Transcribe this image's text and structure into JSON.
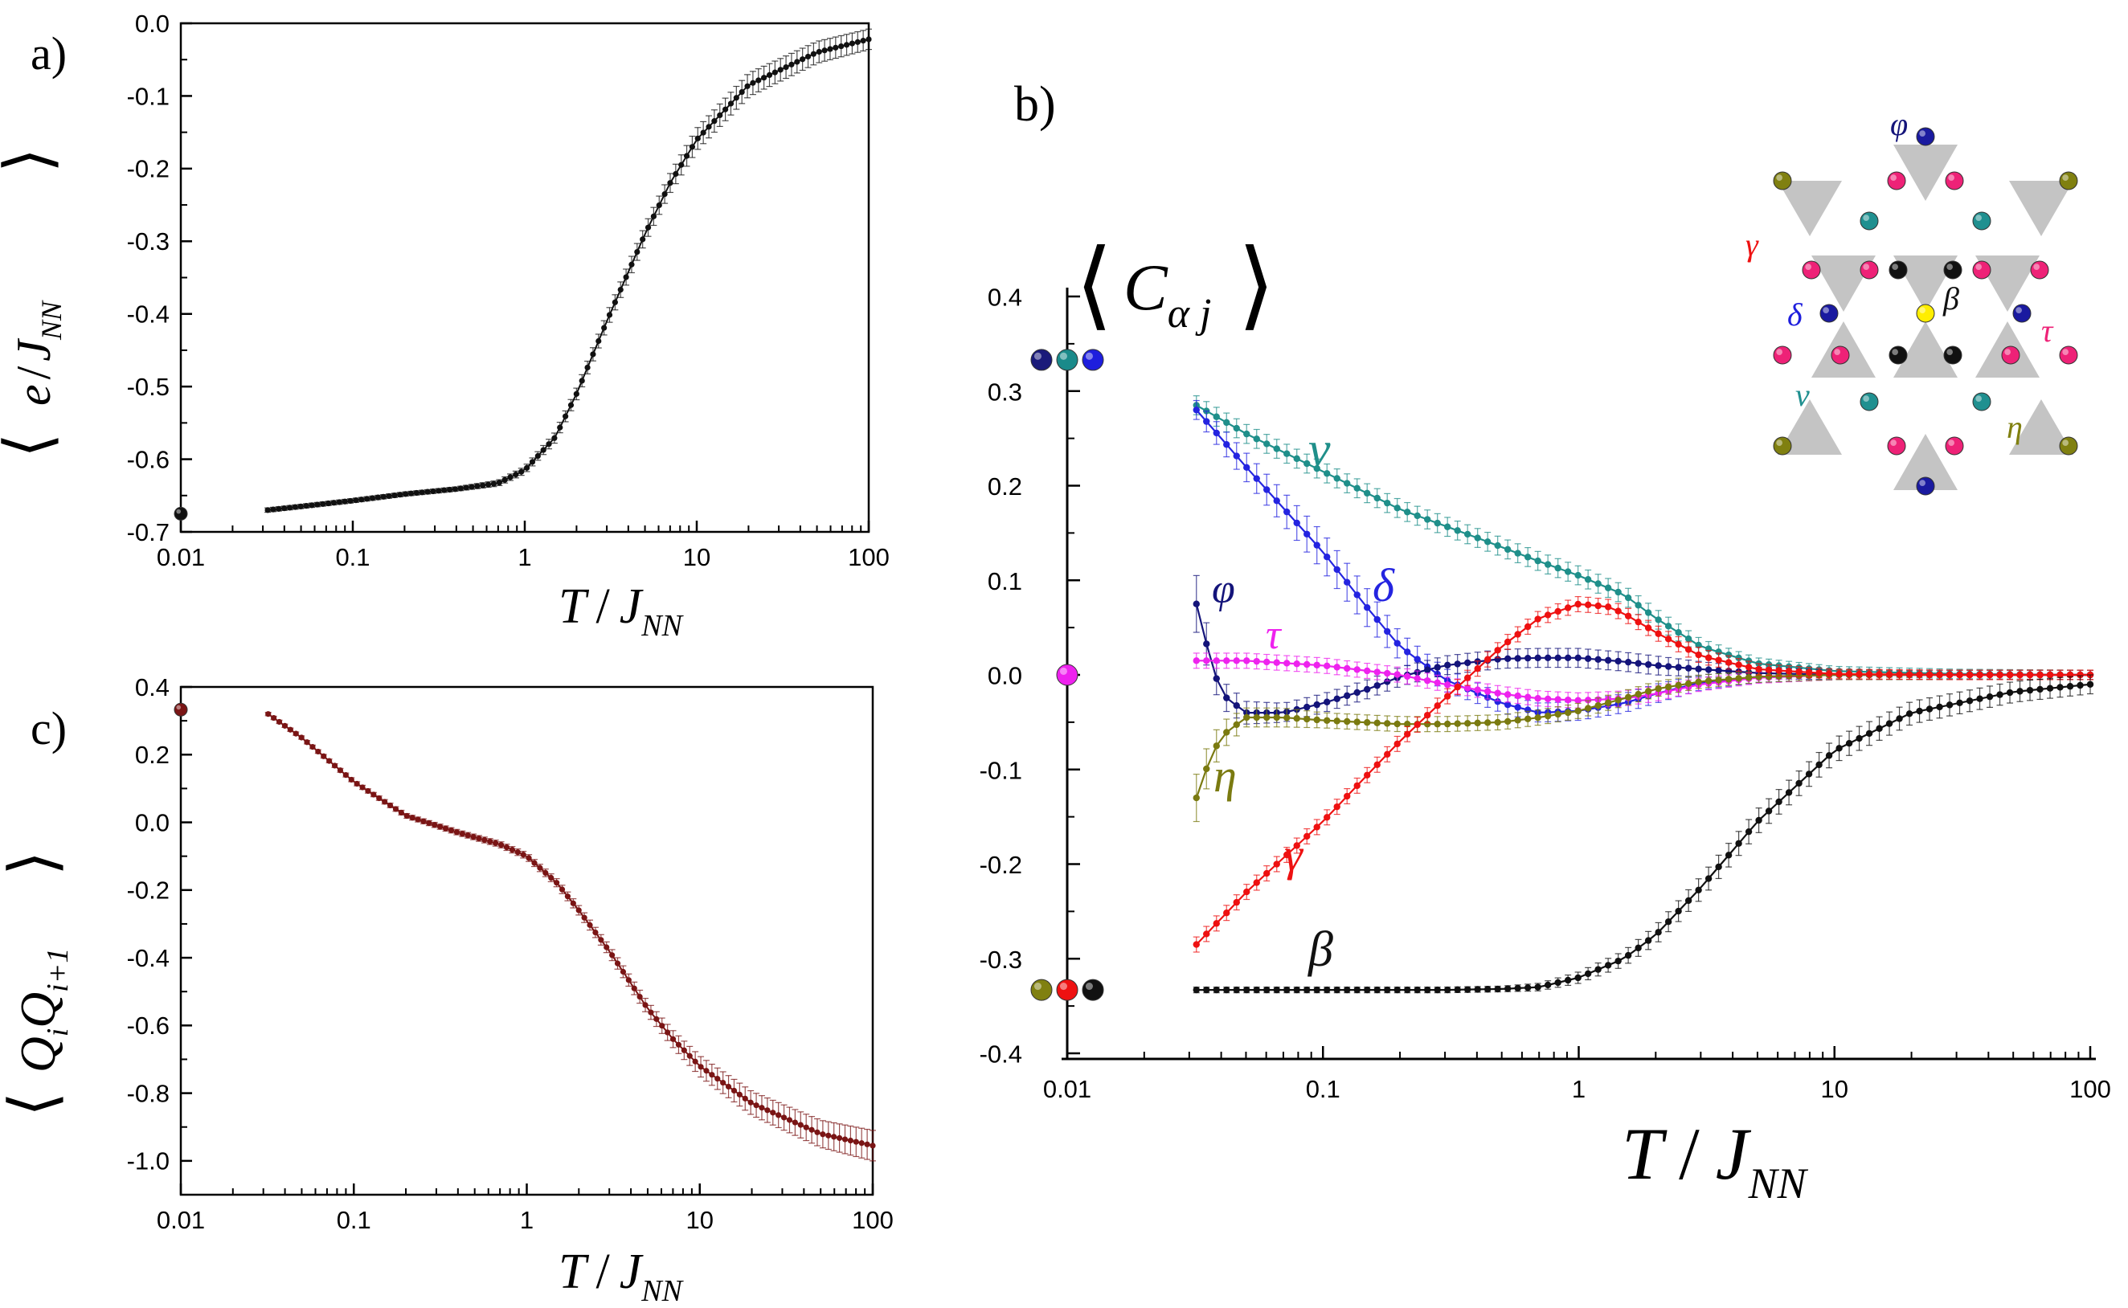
{
  "chart_data": [
    {
      "panel_label": "a)",
      "type": "scatter",
      "x_scale": "log",
      "xlim": [
        0.01,
        100
      ],
      "ylim": [
        -0.7,
        0.0
      ],
      "xlabel_T": "T",
      "xlabel_sep": "/",
      "xlabel_J": "J",
      "xlabel_sub": "NN",
      "ylabel_e": "e",
      "ylabel_sep": "/",
      "ylabel_J": "J",
      "ylabel_sub": "NN",
      "xtick_labels": [
        "0.01",
        "0.1",
        "1",
        "10",
        "100"
      ],
      "ytick_labels": [
        "0.0",
        "-0.1",
        "-0.2",
        "-0.3",
        "-0.4",
        "-0.5",
        "-0.6",
        "-0.7"
      ],
      "ground_state": {
        "x": 0.01,
        "y": -0.675,
        "color": "#111111"
      },
      "series": [
        {
          "name": "e",
          "color": "#111111",
          "x": [
            0.032,
            0.05,
            0.1,
            0.2,
            0.4,
            0.7,
            1.0,
            1.5,
            2.0,
            3.0,
            5.0,
            7.0,
            10,
            20,
            50,
            100
          ],
          "y": [
            -0.67,
            -0.665,
            -0.657,
            -0.648,
            -0.641,
            -0.633,
            -0.615,
            -0.57,
            -0.51,
            -0.41,
            -0.29,
            -0.22,
            -0.16,
            -0.085,
            -0.04,
            -0.022
          ],
          "err": [
            0.003,
            0.003,
            0.003,
            0.003,
            0.003,
            0.004,
            0.005,
            0.007,
            0.008,
            0.01,
            0.012,
            0.013,
            0.015,
            0.016,
            0.015,
            0.014
          ]
        }
      ]
    },
    {
      "panel_label": "b)",
      "type": "scatter",
      "x_scale": "log",
      "xlim": [
        0.01,
        100
      ],
      "ylim": [
        -0.4,
        0.4
      ],
      "xlabel_T": "T",
      "xlabel_sep": "/",
      "xlabel_J": "J",
      "xlabel_sub": "NN",
      "ylabel_C": "C",
      "ylabel_sub": "α j",
      "xtick_labels": [
        "0.01",
        "0.1",
        "1",
        "10",
        "100"
      ],
      "ytick_labels": [
        "0.4",
        "0.3",
        "0.2",
        "0.1",
        "0.0",
        "-0.1",
        "-0.2",
        "-0.3",
        "-0.4"
      ],
      "ground_states": [
        {
          "y": 0.333,
          "colors": [
            "#1a1a7a",
            "#1a8a8a",
            "#1e1edd"
          ]
        },
        {
          "y": 0.0,
          "colors": [
            "#ee22ee"
          ]
        },
        {
          "y": -0.333,
          "colors": [
            "#808010",
            "#ee1111",
            "#111111"
          ]
        }
      ],
      "series": [
        {
          "name": "ν",
          "color": "#1f8f8a",
          "x": [
            0.032,
            0.05,
            0.1,
            0.2,
            0.4,
            0.7,
            1.0,
            1.5,
            2.0,
            3.0,
            5.0,
            10,
            30,
            100
          ],
          "y": [
            0.285,
            0.255,
            0.215,
            0.175,
            0.145,
            0.12,
            0.105,
            0.085,
            0.06,
            0.03,
            0.012,
            0.004,
            0.001,
            0.0
          ],
          "err": [
            0.01,
            0.01,
            0.01,
            0.01,
            0.01,
            0.01,
            0.01,
            0.01,
            0.01,
            0.008,
            0.006,
            0.005,
            0.005,
            0.005
          ]
        },
        {
          "name": "δ",
          "color": "#2424e0",
          "x": [
            0.032,
            0.05,
            0.1,
            0.15,
            0.2,
            0.3,
            0.5,
            0.7,
            1.0,
            1.5,
            2.0,
            3.0,
            5.0,
            10,
            30,
            100
          ],
          "y": [
            0.28,
            0.22,
            0.13,
            0.07,
            0.03,
            -0.005,
            -0.03,
            -0.04,
            -0.038,
            -0.03,
            -0.02,
            -0.008,
            -0.002,
            0.0,
            0.0,
            0.0
          ],
          "err": [
            0.01,
            0.015,
            0.02,
            0.02,
            0.015,
            0.012,
            0.01,
            0.01,
            0.01,
            0.01,
            0.01,
            0.008,
            0.006,
            0.005,
            0.005,
            0.005
          ]
        },
        {
          "name": "φ",
          "color": "#14147a",
          "x": [
            0.032,
            0.036,
            0.04,
            0.05,
            0.07,
            0.1,
            0.15,
            0.2,
            0.3,
            0.5,
            0.7,
            1.0,
            1.5,
            2.0,
            3.0,
            5.0,
            10,
            30,
            100
          ],
          "y": [
            0.075,
            0.02,
            -0.02,
            -0.04,
            -0.04,
            -0.03,
            -0.015,
            -0.002,
            0.01,
            0.017,
            0.018,
            0.018,
            0.014,
            0.01,
            0.006,
            0.002,
            0.0,
            0.0,
            0.0
          ],
          "err": [
            0.03,
            0.02,
            0.015,
            0.012,
            0.01,
            0.01,
            0.01,
            0.01,
            0.01,
            0.01,
            0.01,
            0.01,
            0.01,
            0.01,
            0.008,
            0.006,
            0.005,
            0.005,
            0.005
          ]
        },
        {
          "name": "τ",
          "color": "#ee22ee",
          "x": [
            0.032,
            0.05,
            0.1,
            0.2,
            0.3,
            0.5,
            0.7,
            1.0,
            1.5,
            2.0,
            3.0,
            5.0,
            10,
            30,
            100
          ],
          "y": [
            0.015,
            0.015,
            0.01,
            0.0,
            -0.01,
            -0.02,
            -0.025,
            -0.027,
            -0.025,
            -0.02,
            -0.01,
            -0.003,
            0.0,
            0.0,
            0.0
          ],
          "err": [
            0.008,
            0.008,
            0.008,
            0.008,
            0.008,
            0.008,
            0.008,
            0.008,
            0.008,
            0.008,
            0.007,
            0.006,
            0.005,
            0.005,
            0.005
          ]
        },
        {
          "name": "η",
          "color": "#7a7a10",
          "x": [
            0.032,
            0.036,
            0.04,
            0.05,
            0.07,
            0.1,
            0.2,
            0.3,
            0.5,
            0.7,
            1.0,
            1.5,
            2.0,
            3.0,
            5.0,
            10,
            30,
            100
          ],
          "y": [
            -0.13,
            -0.09,
            -0.065,
            -0.045,
            -0.045,
            -0.048,
            -0.052,
            -0.052,
            -0.05,
            -0.045,
            -0.038,
            -0.025,
            -0.015,
            -0.007,
            -0.002,
            0.0,
            0.0,
            0.0
          ],
          "err": [
            0.025,
            0.02,
            0.015,
            0.01,
            0.01,
            0.008,
            0.008,
            0.008,
            0.008,
            0.008,
            0.008,
            0.008,
            0.008,
            0.007,
            0.006,
            0.005,
            0.005,
            0.005
          ]
        },
        {
          "name": "γ",
          "color": "#ee1111",
          "x": [
            0.032,
            0.05,
            0.1,
            0.15,
            0.2,
            0.3,
            0.5,
            0.7,
            1.0,
            1.3,
            1.5,
            2.0,
            3.0,
            5.0,
            10,
            30,
            100
          ],
          "y": [
            -0.285,
            -0.23,
            -0.155,
            -0.105,
            -0.07,
            -0.025,
            0.03,
            0.06,
            0.075,
            0.072,
            0.065,
            0.045,
            0.02,
            0.006,
            0.001,
            0.0,
            0.0
          ],
          "err": [
            0.008,
            0.008,
            0.008,
            0.008,
            0.008,
            0.008,
            0.008,
            0.008,
            0.008,
            0.008,
            0.008,
            0.008,
            0.008,
            0.006,
            0.005,
            0.005,
            0.005
          ]
        },
        {
          "name": "β",
          "color": "#111111",
          "x": [
            0.032,
            0.1,
            0.3,
            0.5,
            0.7,
            1.0,
            1.5,
            2.0,
            3.0,
            5.0,
            10,
            20,
            50,
            100
          ],
          "y": [
            -0.333,
            -0.333,
            -0.333,
            -0.332,
            -0.33,
            -0.32,
            -0.3,
            -0.275,
            -0.225,
            -0.155,
            -0.08,
            -0.04,
            -0.018,
            -0.01
          ],
          "err": [
            0.003,
            0.003,
            0.003,
            0.003,
            0.004,
            0.006,
            0.008,
            0.01,
            0.012,
            0.013,
            0.013,
            0.012,
            0.011,
            0.01
          ]
        }
      ],
      "annotations": [
        {
          "text": "ν",
          "series": "ν"
        },
        {
          "text": "δ",
          "series": "δ"
        },
        {
          "text": "φ",
          "series": "φ"
        },
        {
          "text": "τ",
          "series": "τ"
        },
        {
          "text": "η",
          "series": "η"
        },
        {
          "text": "γ",
          "series": "γ"
        },
        {
          "text": "β",
          "series": "β"
        }
      ],
      "lattice_inset": {
        "labels": [
          "φ",
          "γ",
          "β",
          "δ",
          "τ",
          "ν",
          "η"
        ],
        "site_colors": {
          "pink": "#ee2277",
          "teal": "#209090",
          "olive": "#808010",
          "black": "#111111",
          "blue": "#1a1aa0",
          "center": "#ffee00",
          "triangle": "#c4c4c4"
        }
      }
    },
    {
      "panel_label": "c)",
      "type": "scatter",
      "x_scale": "log",
      "xlim": [
        0.01,
        100
      ],
      "ylim": [
        -1.1,
        0.4
      ],
      "xlabel_T": "T",
      "xlabel_sep": "/",
      "xlabel_J": "J",
      "xlabel_sub": "NN",
      "ylabel_Q": "Q",
      "ylabel_sub_i": "i",
      "ylabel_sub_i1": "i+1",
      "xtick_labels": [
        "0.01",
        "0.1",
        "1",
        "10",
        "100"
      ],
      "ytick_labels": [
        "0.4",
        "0.2",
        "0.0",
        "-0.2",
        "-0.4",
        "-0.6",
        "-0.8",
        "-1.0"
      ],
      "ground_state": {
        "x": 0.01,
        "y": 0.333,
        "color": "#7a1515"
      },
      "series": [
        {
          "name": "QQ",
          "color": "#7a1515",
          "x": [
            0.032,
            0.05,
            0.1,
            0.2,
            0.4,
            0.7,
            1.0,
            1.5,
            2.0,
            3.0,
            5.0,
            7.0,
            10,
            20,
            50,
            100
          ],
          "y": [
            0.32,
            0.25,
            0.12,
            0.02,
            -0.03,
            -0.065,
            -0.1,
            -0.18,
            -0.26,
            -0.38,
            -0.55,
            -0.64,
            -0.72,
            -0.83,
            -0.92,
            -0.955
          ],
          "err": [
            0.005,
            0.005,
            0.006,
            0.007,
            0.008,
            0.009,
            0.01,
            0.012,
            0.014,
            0.016,
            0.02,
            0.025,
            0.03,
            0.035,
            0.04,
            0.045
          ]
        }
      ]
    }
  ]
}
